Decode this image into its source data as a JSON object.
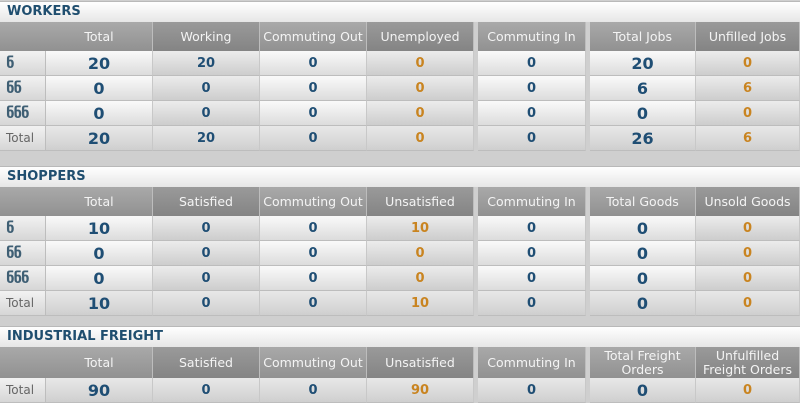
{
  "workers": {
    "title": "WORKERS",
    "headers": [
      "Total",
      "Working",
      "Commuting Out",
      "Unemployed",
      "Commuting In",
      "Total Jobs",
      "Unfilled Jobs"
    ],
    "rows": [
      {
        "label": "",
        "icon": "level-1-icon",
        "glyph": "ნ",
        "values": [
          "20",
          "20",
          "0",
          "0",
          "0",
          "20",
          "0"
        ]
      },
      {
        "label": "",
        "icon": "level-2-icon",
        "glyph": "ნნ",
        "values": [
          "0",
          "0",
          "0",
          "0",
          "0",
          "6",
          "6"
        ]
      },
      {
        "label": "",
        "icon": "level-3-icon",
        "glyph": "ნნნ",
        "values": [
          "0",
          "0",
          "0",
          "0",
          "0",
          "0",
          "0"
        ]
      },
      {
        "label": "Total",
        "icon": "",
        "glyph": "",
        "values": [
          "20",
          "20",
          "0",
          "0",
          "0",
          "26",
          "6"
        ]
      }
    ]
  },
  "shoppers": {
    "title": "SHOPPERS",
    "headers": [
      "Total",
      "Satisfied",
      "Commuting Out",
      "Unsatisfied",
      "Commuting In",
      "Total Goods",
      "Unsold Goods"
    ],
    "rows": [
      {
        "label": "",
        "icon": "level-1-icon",
        "glyph": "ნ",
        "values": [
          "10",
          "0",
          "0",
          "10",
          "0",
          "0",
          "0"
        ]
      },
      {
        "label": "",
        "icon": "level-2-icon",
        "glyph": "ნნ",
        "values": [
          "0",
          "0",
          "0",
          "0",
          "0",
          "0",
          "0"
        ]
      },
      {
        "label": "",
        "icon": "level-3-icon",
        "glyph": "ნნნ",
        "values": [
          "0",
          "0",
          "0",
          "0",
          "0",
          "0",
          "0"
        ]
      },
      {
        "label": "Total",
        "icon": "",
        "glyph": "",
        "values": [
          "10",
          "0",
          "0",
          "10",
          "0",
          "0",
          "0"
        ]
      }
    ]
  },
  "freight": {
    "title": "INDUSTRIAL FREIGHT",
    "headers": [
      "Total",
      "Satisfied",
      "Commuting Out",
      "Unsatisfied",
      "Commuting In",
      "Total Freight Orders",
      "Unfulfilled Freight Orders"
    ],
    "rows": [
      {
        "label": "Total",
        "icon": "",
        "glyph": "",
        "values": [
          "90",
          "0",
          "0",
          "90",
          "0",
          "0",
          "0"
        ]
      }
    ]
  },
  "colors": {
    "blue": "#1f4e74",
    "orange": "#c98420",
    "title": "#1f4e6f"
  }
}
